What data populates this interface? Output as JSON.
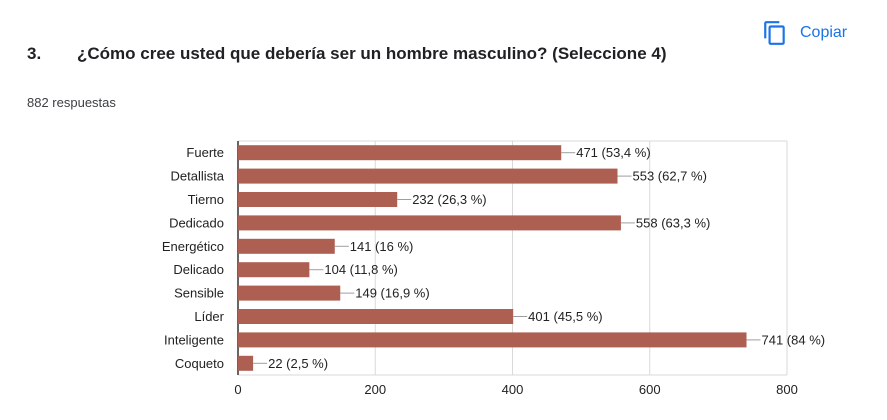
{
  "header": {
    "copy_label": "Copiar",
    "copy_icon": "copy-icon",
    "accent_color": "#1a73e8"
  },
  "question": {
    "number": "3.",
    "title": "¿Cómo cree usted que debería ser un hombre masculino? (Seleccione 4)",
    "responses": "882 respuestas"
  },
  "chart_data": {
    "type": "bar",
    "orientation": "horizontal",
    "categories": [
      "Fuerte",
      "Detallista",
      "Tierno",
      "Dedicado",
      "Energético",
      "Delicado",
      "Sensible",
      "Líder",
      "Inteligente",
      "Coqueto"
    ],
    "values": [
      471,
      553,
      232,
      558,
      141,
      104,
      149,
      401,
      741,
      22
    ],
    "labels": [
      "471 (53,4 %)",
      "553 (62,7 %)",
      "232 (26,3 %)",
      "558 (63,3 %)",
      "141 (16 %)",
      "104 (11,8 %)",
      "149 (16,9 %)",
      "401 (45,5 %)",
      "741 (84 %)",
      "22 (2,5 %)"
    ],
    "xticks": [
      0,
      200,
      400,
      600,
      800
    ],
    "xlim": [
      0,
      800
    ],
    "bar_color": "#ad5f52",
    "grid": true
  }
}
